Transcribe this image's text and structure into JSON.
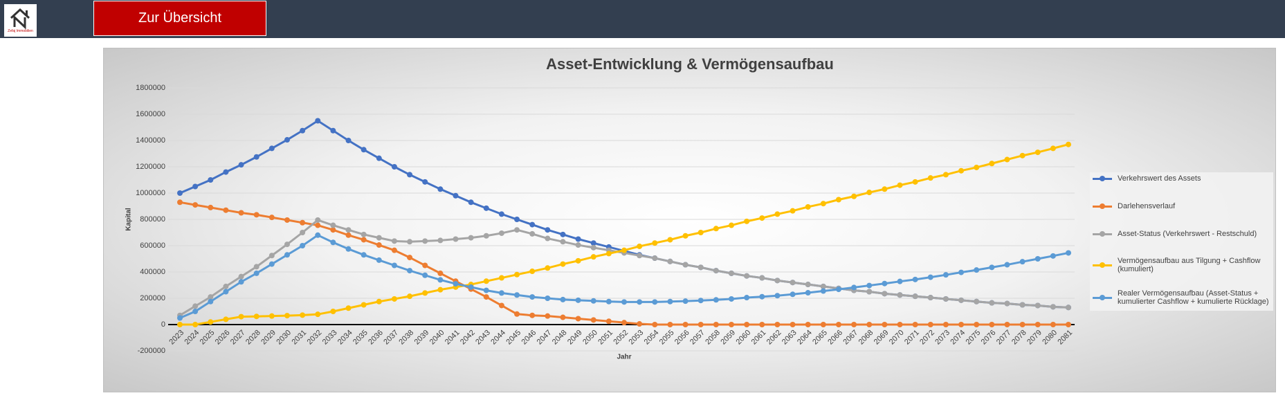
{
  "header": {
    "logo_text": "Zefaj Immobilien",
    "button": "Zur Übersicht"
  },
  "chart_data": {
    "type": "line",
    "title": "Asset-Entwicklung & Vermögensaufbau",
    "x_label": "Jahr",
    "y_label": "Kapital",
    "categories": [
      "2023",
      "2024",
      "2025",
      "2026",
      "2027",
      "2028",
      "2029",
      "2030",
      "2031",
      "2032",
      "2033",
      "2034",
      "2035",
      "2036",
      "2037",
      "2038",
      "2039",
      "2040",
      "2041",
      "2042",
      "2043",
      "2044",
      "2045",
      "2046",
      "2047",
      "2048",
      "2049",
      "2050",
      "2051",
      "2052",
      "2053",
      "2054",
      "2055",
      "2056",
      "2057",
      "2058",
      "2059",
      "2060",
      "2061",
      "2062",
      "2063",
      "2064",
      "2065",
      "2066",
      "2067",
      "2068",
      "2069",
      "2070",
      "2071",
      "2072",
      "2073",
      "2074",
      "2075",
      "2076",
      "2077",
      "2078",
      "2079",
      "2080",
      "2081"
    ],
    "ylim": [
      -200000,
      1800000
    ],
    "yticks": [
      -200000,
      0,
      200000,
      400000,
      600000,
      800000,
      1000000,
      1200000,
      1400000,
      1600000,
      1800000
    ],
    "grid": true,
    "legend": "right",
    "series": [
      {
        "name": "Verkehrswert des Assets",
        "color": "#4472c4",
        "values": [
          1000000,
          1050000,
          1100000,
          1160000,
          1215000,
          1275000,
          1340000,
          1405000,
          1475000,
          1550000,
          1475000,
          1400000,
          1330000,
          1265000,
          1200000,
          1140000,
          1085000,
          1030000,
          980000,
          930000,
          885000,
          840000,
          800000,
          760000,
          720000,
          685000,
          650000,
          620000,
          590000,
          560000,
          530000,
          505000,
          480000,
          455000,
          435000,
          410000,
          390000,
          370000,
          355000,
          335000,
          320000,
          305000,
          290000,
          275000,
          260000,
          250000,
          235000,
          225000,
          215000,
          205000,
          195000,
          185000,
          175000,
          165000,
          160000,
          150000,
          145000,
          135000,
          130000
        ]
      },
      {
        "name": "Darlehensverlauf",
        "color": "#ed7d31",
        "values": [
          930000,
          910000,
          890000,
          870000,
          850000,
          835000,
          815000,
          795000,
          775000,
          755000,
          720000,
          680000,
          645000,
          605000,
          565000,
          510000,
          450000,
          390000,
          330000,
          270000,
          210000,
          145000,
          80000,
          70000,
          65000,
          55000,
          45000,
          35000,
          25000,
          15000,
          5000,
          0,
          0,
          0,
          0,
          0,
          0,
          0,
          0,
          0,
          0,
          0,
          0,
          0,
          0,
          0,
          0,
          0,
          0,
          0,
          0,
          0,
          0,
          0,
          0,
          0,
          0,
          0,
          0
        ]
      },
      {
        "name": "Asset-Status (Verkehrswert - Restschuld)",
        "color": "#a5a5a5",
        "values": [
          70000,
          140000,
          210000,
          290000,
          365000,
          440000,
          525000,
          610000,
          700000,
          795000,
          755000,
          720000,
          685000,
          660000,
          635000,
          630000,
          635000,
          640000,
          650000,
          660000,
          675000,
          695000,
          720000,
          690000,
          655000,
          630000,
          605000,
          585000,
          565000,
          545000,
          525000,
          505000,
          480000,
          455000,
          435000,
          410000,
          390000,
          370000,
          355000,
          335000,
          320000,
          305000,
          290000,
          275000,
          260000,
          250000,
          235000,
          225000,
          215000,
          205000,
          195000,
          185000,
          175000,
          165000,
          160000,
          150000,
          145000,
          135000,
          130000
        ]
      },
      {
        "name": "Vermögensaufbau aus Tilgung + Cashflow (kumuliert)",
        "color": "#ffc000",
        "values": [
          0,
          0,
          20000,
          40000,
          60000,
          62000,
          65000,
          68000,
          72000,
          78000,
          100000,
          125000,
          150000,
          175000,
          195000,
          215000,
          240000,
          265000,
          285000,
          305000,
          330000,
          355000,
          380000,
          405000,
          430000,
          460000,
          485000,
          515000,
          540000,
          565000,
          595000,
          620000,
          645000,
          675000,
          700000,
          730000,
          755000,
          785000,
          810000,
          840000,
          865000,
          895000,
          920000,
          950000,
          975000,
          1005000,
          1030000,
          1060000,
          1085000,
          1115000,
          1140000,
          1170000,
          1195000,
          1225000,
          1255000,
          1285000,
          1310000,
          1340000,
          1370000
        ]
      },
      {
        "name": "Realer Vermögensaufbau (Asset-Status + kumulierter Cashflow + kumulierte Rücklage)",
        "color": "#5b9bd5",
        "values": [
          50000,
          100000,
          175000,
          250000,
          325000,
          390000,
          460000,
          530000,
          600000,
          680000,
          625000,
          575000,
          530000,
          490000,
          450000,
          410000,
          375000,
          340000,
          310000,
          285000,
          260000,
          240000,
          225000,
          210000,
          200000,
          190000,
          185000,
          180000,
          175000,
          172000,
          172000,
          172000,
          175000,
          178000,
          183000,
          188000,
          195000,
          205000,
          212000,
          220000,
          230000,
          242000,
          255000,
          268000,
          282000,
          297000,
          312000,
          328000,
          343000,
          360000,
          378000,
          397000,
          415000,
          435000,
          455000,
          478000,
          500000,
          522000,
          545000
        ]
      }
    ]
  }
}
